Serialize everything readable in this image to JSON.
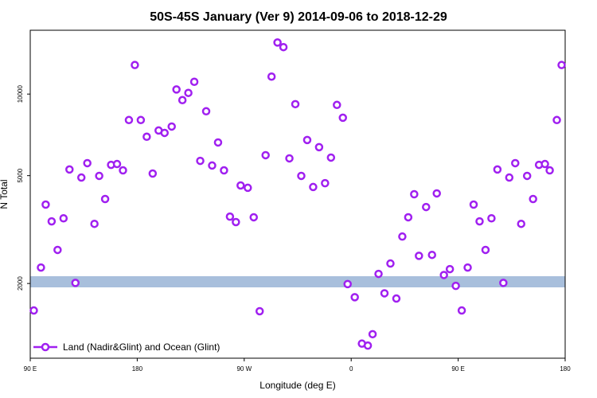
{
  "chart_data": {
    "type": "scatter",
    "title": "50S-45S January (Ver 9)   2014-09-06 to 2018-12-29",
    "xlabel": "Longitude (deg E)",
    "ylabel": "N Total",
    "log_y": true,
    "xlim": [
      90,
      540
    ],
    "ylim": [
      1060,
      17200
    ],
    "xticks": [
      {
        "value": 90,
        "label": "90 E"
      },
      180,
      {
        "value": 270,
        "label": "90 W"
      },
      {
        "value": 360,
        "label": "0"
      },
      {
        "value": 450,
        "label": "90 E"
      },
      {
        "value": 540,
        "label": "180"
      }
    ],
    "yticks": [
      2000,
      5000,
      10000
    ],
    "legend": "bottom-left",
    "series": [
      {
        "name": "Land (Nadir&Glint) and Ocean (Glint)",
        "color": "#a020f0",
        "x": [
          93,
          99,
          103,
          108,
          113,
          118,
          123,
          128,
          133,
          138,
          144,
          148,
          153,
          158,
          163,
          168,
          173,
          178,
          183,
          188,
          193,
          198,
          203,
          209,
          213,
          218,
          223,
          228,
          233,
          238,
          243,
          248,
          253,
          258,
          263,
          267,
          273,
          278,
          283,
          288,
          293,
          298,
          303,
          308,
          313,
          318,
          323,
          328,
          333,
          338,
          343,
          348,
          353,
          357,
          363,
          369,
          374,
          378,
          383,
          388,
          393,
          398,
          403,
          408,
          413,
          417,
          423,
          428,
          432,
          438,
          443,
          448,
          453,
          458,
          463,
          468,
          473,
          478,
          483,
          488,
          493,
          498,
          503,
          508,
          513,
          518,
          523,
          527,
          533,
          537
        ],
        "values": [
          1590,
          2290,
          3910,
          3390,
          2660,
          3480,
          5270,
          2010,
          4920,
          5560,
          3320,
          4990,
          4100,
          5480,
          5520,
          5230,
          8020,
          12800,
          8020,
          6960,
          5090,
          7340,
          7190,
          7590,
          10400,
          9500,
          10100,
          11100,
          5670,
          8640,
          5450,
          6630,
          5230,
          3530,
          3370,
          4600,
          4510,
          3510,
          1580,
          5950,
          11600,
          15500,
          14900,
          5790,
          9180,
          4990,
          6770,
          4540,
          6370,
          4690,
          5830,
          9120,
          8180,
          1990,
          1780,
          1200,
          1180,
          1300,
          2170,
          1840,
          2370,
          1760,
          2980,
          3510,
          4270,
          2530,
          3830,
          2550,
          4300,
          2150,
          2260,
          1960,
          1590,
          2290,
          3910,
          3390,
          2660,
          3480,
          5270,
          2010,
          4920,
          5560,
          3320,
          4990,
          4100,
          5480,
          5520,
          5230,
          8020,
          12800
        ]
      }
    ]
  }
}
